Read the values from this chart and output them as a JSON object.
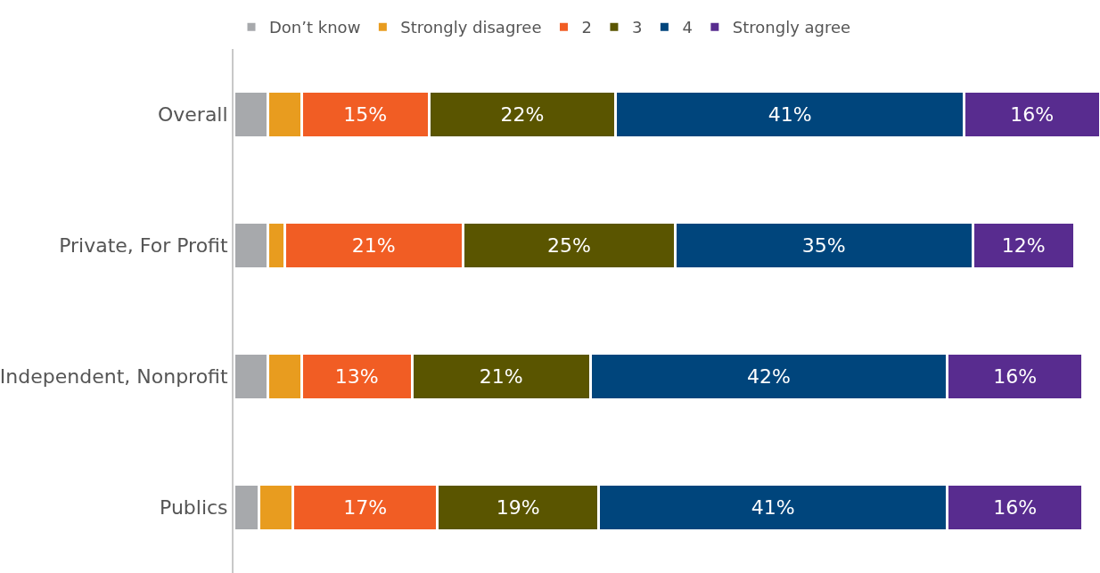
{
  "chart_data": {
    "type": "bar",
    "orientation": "horizontal",
    "stacked": true,
    "legend": "top",
    "categories": [
      "Overall",
      "Private, For Profit",
      "Independent, Nonprofit",
      "Publics"
    ],
    "series": [
      {
        "name": "Don’t know",
        "color": "#a7a9ac",
        "values": [
          4,
          4,
          4,
          3
        ],
        "value_labels": [
          null,
          null,
          null,
          null
        ]
      },
      {
        "name": "Strongly disagree",
        "color": "#e89c1f",
        "values": [
          4,
          2,
          4,
          4
        ],
        "value_labels": [
          null,
          null,
          null,
          null
        ]
      },
      {
        "name": "2",
        "color": "#f15d24",
        "values": [
          15,
          21,
          13,
          17
        ],
        "value_labels": [
          "15%",
          "21%",
          "13%",
          "17%"
        ]
      },
      {
        "name": "3",
        "color": "#5a5500",
        "values": [
          22,
          25,
          21,
          19
        ],
        "value_labels": [
          "22%",
          "25%",
          "21%",
          "19%"
        ]
      },
      {
        "name": "4",
        "color": "#00457c",
        "values": [
          41,
          35,
          42,
          41
        ],
        "value_labels": [
          "41%",
          "35%",
          "42%",
          "41%"
        ]
      },
      {
        "name": "Strongly agree",
        "color": "#582c8f",
        "values": [
          16,
          12,
          16,
          16
        ],
        "value_labels": [
          "16%",
          "12%",
          "16%",
          "16%"
        ]
      }
    ]
  }
}
